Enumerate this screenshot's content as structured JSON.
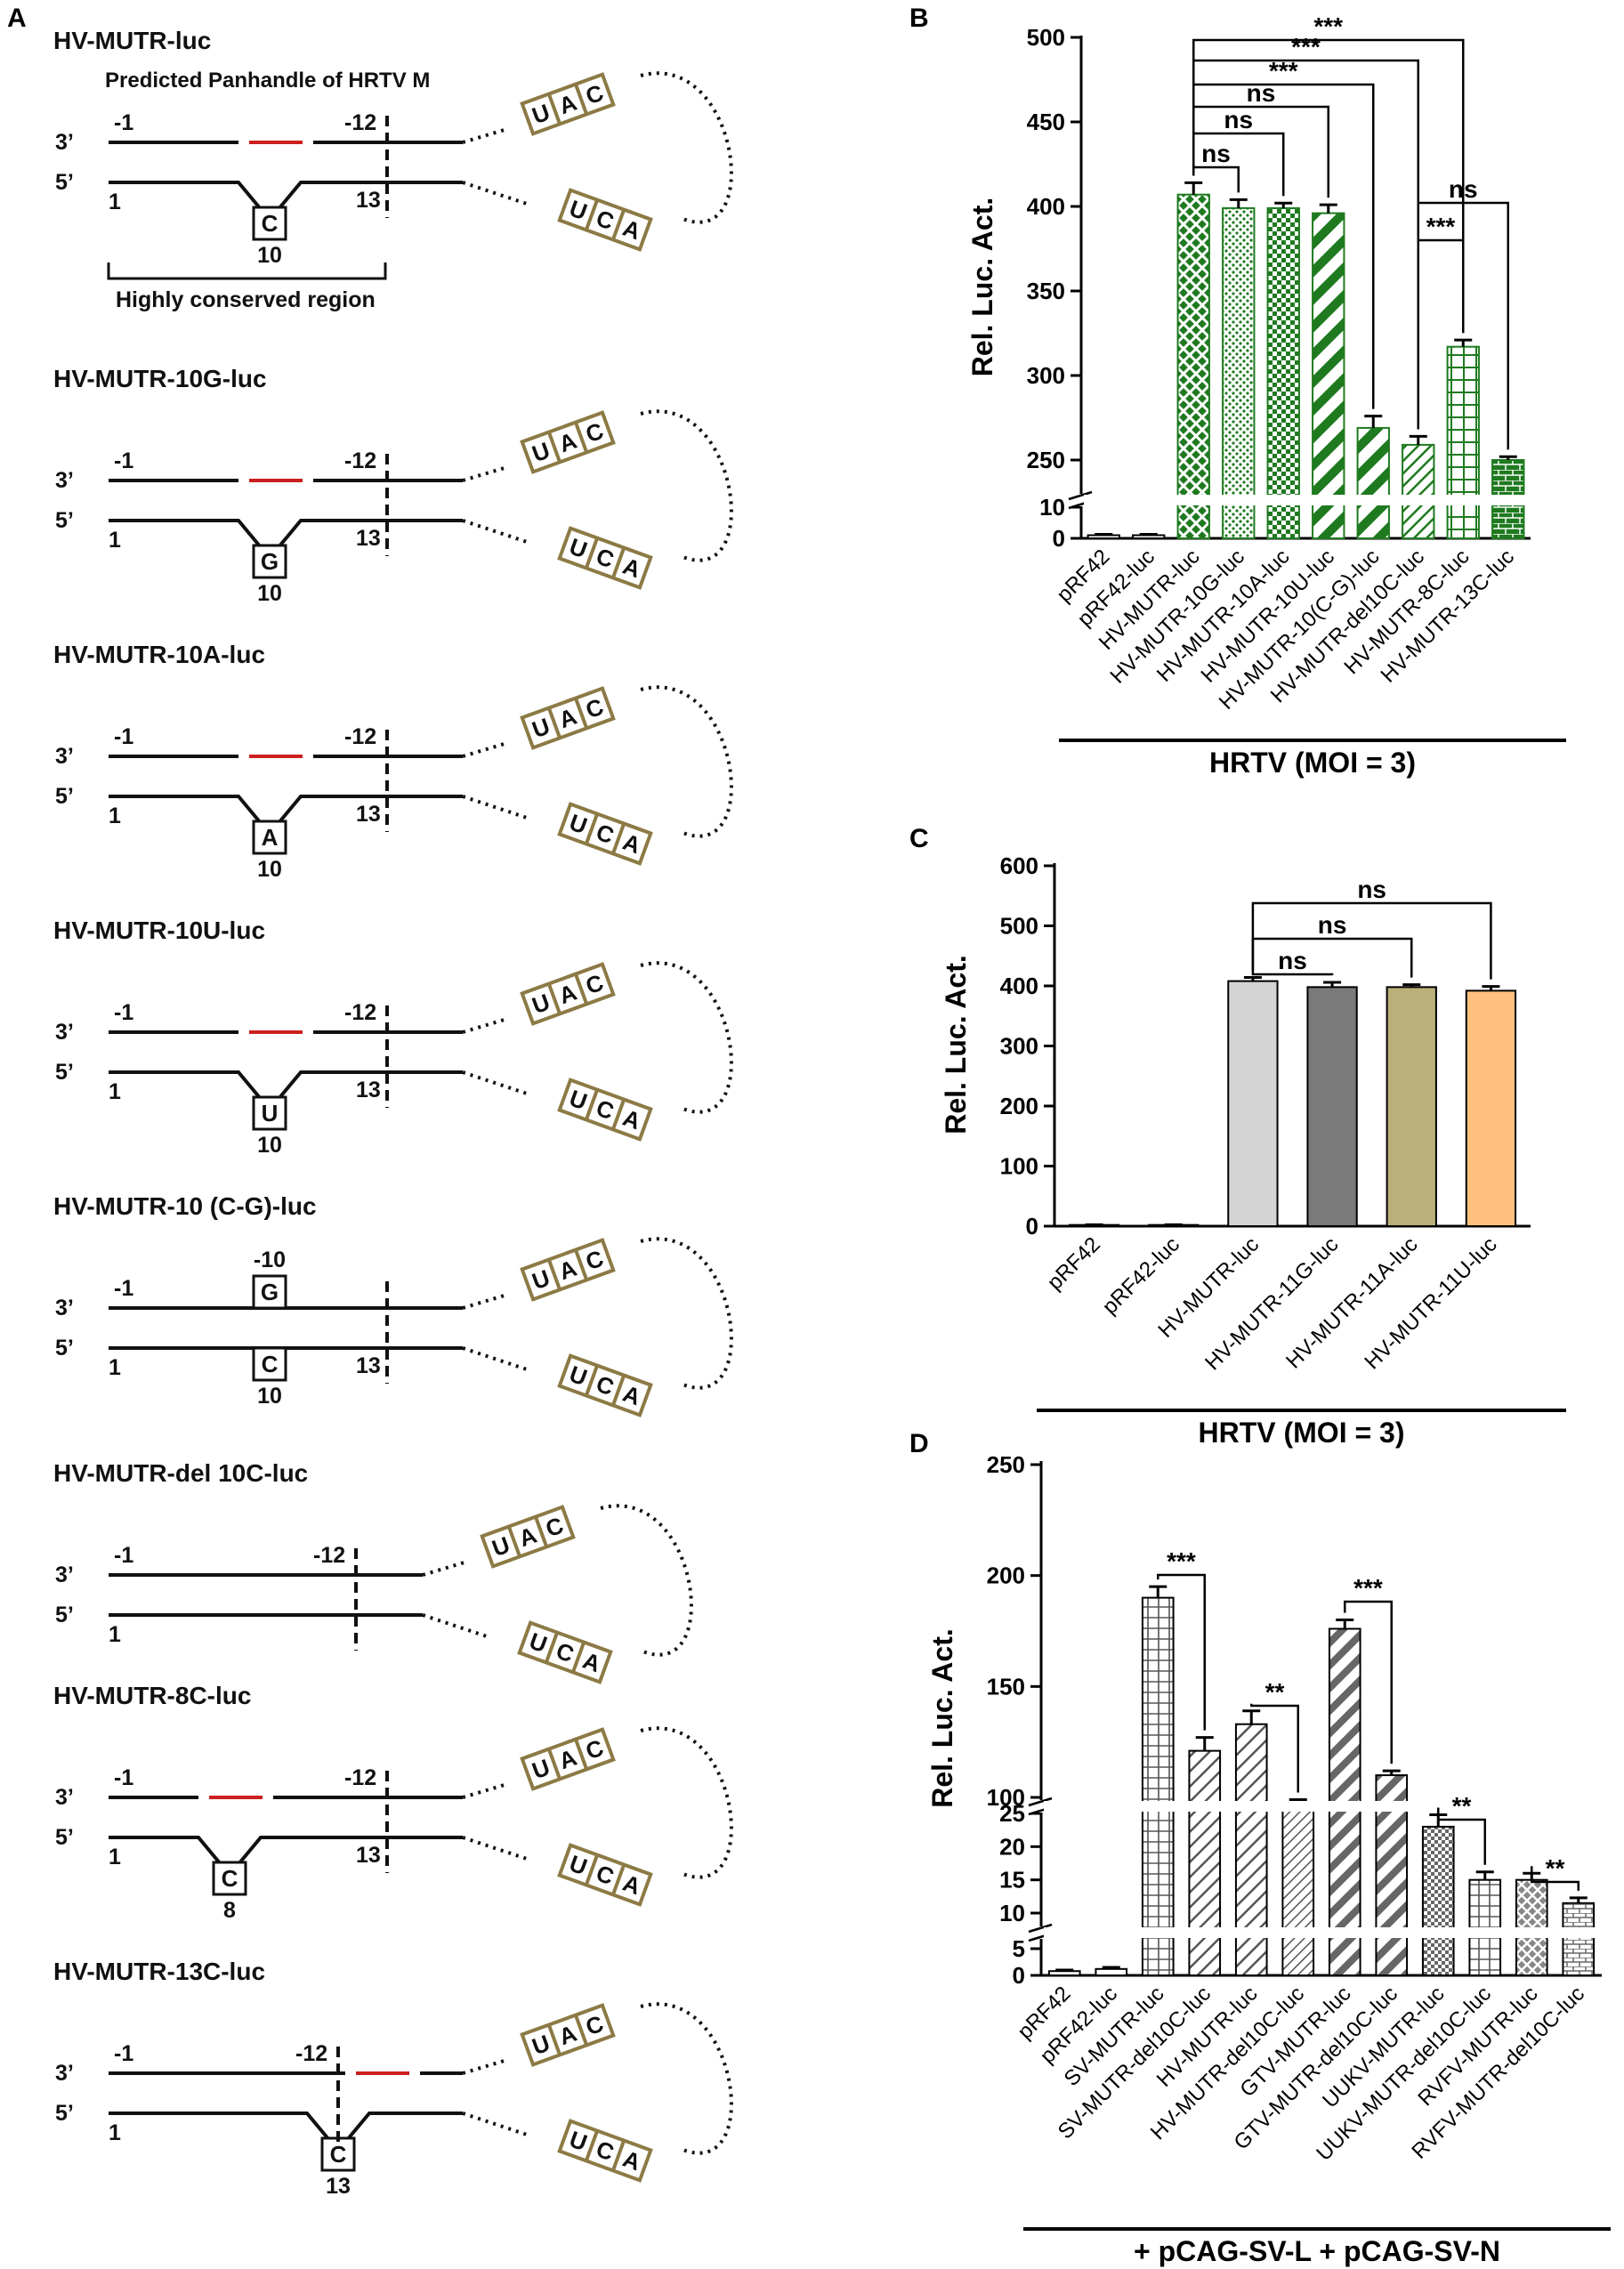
{
  "panel_labels": {
    "a": "A",
    "b": "B",
    "c": "C",
    "d": "D"
  },
  "colors": {
    "green": "#1f7a1f",
    "olive": "#8c7a45",
    "red": "#cc1f1f",
    "gray_light": "#d4d4d4",
    "gray_dark": "#7a7a7a",
    "khaki": "#bcb07a",
    "orange": "#ffc080"
  },
  "diagram": {
    "panhandle_title": "Predicted Panhandle of HRTV M",
    "conserved_label": "Highly conserved region",
    "strand3": "3’",
    "strand5": "5’",
    "loop_top": [
      "U",
      "A",
      "C"
    ],
    "loop_bottom": [
      "U",
      "C",
      "A"
    ],
    "constructs": [
      {
        "name": "HV-MUTR-luc",
        "bulge": "C",
        "pos": "10",
        "top_left": "-1",
        "top_right": "-12",
        "bot_left": "1",
        "bot_right": "13"
      },
      {
        "name": "HV-MUTR-10G-luc",
        "bulge": "G",
        "pos": "10",
        "top_left": "-1",
        "top_right": "-12",
        "bot_left": "1",
        "bot_right": "13"
      },
      {
        "name": "HV-MUTR-10A-luc",
        "bulge": "A",
        "pos": "10",
        "top_left": "-1",
        "top_right": "-12",
        "bot_left": "1",
        "bot_right": "13"
      },
      {
        "name": "HV-MUTR-10U-luc",
        "bulge": "U",
        "pos": "10",
        "top_left": "-1",
        "top_right": "-12",
        "bot_left": "1",
        "bot_right": "13"
      },
      {
        "name": "HV-MUTR-10 (C-G)-luc",
        "top_nt": "G",
        "top_pos": "-10",
        "bot_nt": "C",
        "pos": "10",
        "top_left": "-1",
        "bot_left": "1",
        "bot_right": "13"
      },
      {
        "name": "HV-MUTR-del 10C-luc",
        "top_left": "-1",
        "top_right": "-12",
        "bot_left": "1"
      },
      {
        "name": "HV-MUTR-8C-luc",
        "bulge": "C",
        "pos": "8",
        "top_left": "-1",
        "top_right": "-12",
        "bot_left": "1",
        "bot_right": "13"
      },
      {
        "name": "HV-MUTR-13C-luc",
        "bulge": "C",
        "pos": "13",
        "top_left": "-1",
        "top_right": "-12",
        "bot_left": "1"
      }
    ]
  },
  "chart_data": [
    {
      "panel": "B",
      "type": "bar",
      "ylabel": "Rel. Luc. Act.",
      "xlabel": "HRTV (MOI = 3)",
      "yticks": [
        "0",
        "10",
        "250",
        "300",
        "350",
        "400",
        "450",
        "500"
      ],
      "ylim": [
        0,
        500
      ],
      "axis_break": [
        10,
        230
      ],
      "categories": [
        "pRF42",
        "pRF42-luc",
        "HV-MUTR-luc",
        "HV-MUTR-10G-luc",
        "HV-MUTR-10A-luc",
        "HV-MUTR-10U-luc",
        "HV-MUTR-10(C-G)-luc",
        "HV-MUTR-del10C-luc",
        "HV-MUTR-8C-luc",
        "HV-MUTR-13C-luc"
      ],
      "values": [
        1,
        1,
        407,
        399,
        399,
        396,
        269,
        259,
        317,
        250
      ],
      "errors": [
        0.3,
        0.3,
        7,
        5,
        3,
        5,
        7,
        5,
        4,
        2
      ],
      "comparisons": [
        {
          "from": 2,
          "to": 3,
          "label": "ns"
        },
        {
          "from": 2,
          "to": 4,
          "label": "ns"
        },
        {
          "from": 2,
          "to": 5,
          "label": "ns"
        },
        {
          "from": 2,
          "to": 6,
          "label": "***"
        },
        {
          "from": 2,
          "to": 7,
          "label": "***"
        },
        {
          "from": 2,
          "to": 8,
          "label": "***"
        },
        {
          "from": 7,
          "to": 8,
          "label": "***"
        },
        {
          "from": 7,
          "to": 9,
          "label": "ns"
        }
      ]
    },
    {
      "panel": "C",
      "type": "bar",
      "ylabel": "Rel. Luc. Act.",
      "xlabel": "HRTV (MOI = 3)",
      "yticks": [
        "0",
        "100",
        "200",
        "300",
        "400",
        "500",
        "600"
      ],
      "ylim": [
        0,
        600
      ],
      "categories": [
        "pRF42",
        "pRF42-luc",
        "HV-MUTR-luc",
        "HV-MUTR-11G-luc",
        "HV-MUTR-11A-luc",
        "HV-MUTR-11U-luc"
      ],
      "values": [
        2,
        2,
        408,
        398,
        398,
        392
      ],
      "errors": [
        0.5,
        0.5,
        6,
        8,
        4,
        7
      ],
      "comparisons": [
        {
          "from": 2,
          "to": 3,
          "label": "ns"
        },
        {
          "from": 2,
          "to": 4,
          "label": "ns"
        },
        {
          "from": 2,
          "to": 5,
          "label": "ns"
        }
      ]
    },
    {
      "panel": "D",
      "type": "bar",
      "ylabel": "Rel. Luc. Act.",
      "xlabel": "+ pCAG-SV-L + pCAG-SV-N",
      "yticks": [
        "0",
        "5",
        "10",
        "15",
        "20",
        "25",
        "100",
        "150",
        "200",
        "250"
      ],
      "ylim": [
        0,
        250
      ],
      "axis_breaks": [
        [
          5,
          8
        ],
        [
          25,
          95
        ]
      ],
      "categories": [
        "pRF42",
        "pRF42-luc",
        "SV-MUTR-luc",
        "SV-MUTR-del10C-luc",
        "HV-MUTR-luc",
        "HV-MUTR-del10C-luc",
        "GTV-MUTR-luc",
        "GTV-MUTR-del10C-luc",
        "UUKV-MUTR-luc",
        "UUKV-MUTR-del10C-luc",
        "RVFV-MUTR-luc",
        "RVFV-MUTR-del10C-luc"
      ],
      "values": [
        0.8,
        1.2,
        190,
        121,
        133,
        92,
        176,
        110,
        23,
        15,
        15,
        11.5
      ],
      "errors": [
        0.2,
        0.3,
        5,
        6,
        6,
        7,
        4,
        2,
        1.8,
        1.2,
        1.0,
        0.8
      ],
      "comparisons": [
        {
          "from": 2,
          "to": 3,
          "label": "***"
        },
        {
          "from": 4,
          "to": 5,
          "label": "**"
        },
        {
          "from": 6,
          "to": 7,
          "label": "***"
        },
        {
          "from": 8,
          "to": 9,
          "label": "**"
        },
        {
          "from": 10,
          "to": 11,
          "label": "**"
        }
      ]
    }
  ]
}
